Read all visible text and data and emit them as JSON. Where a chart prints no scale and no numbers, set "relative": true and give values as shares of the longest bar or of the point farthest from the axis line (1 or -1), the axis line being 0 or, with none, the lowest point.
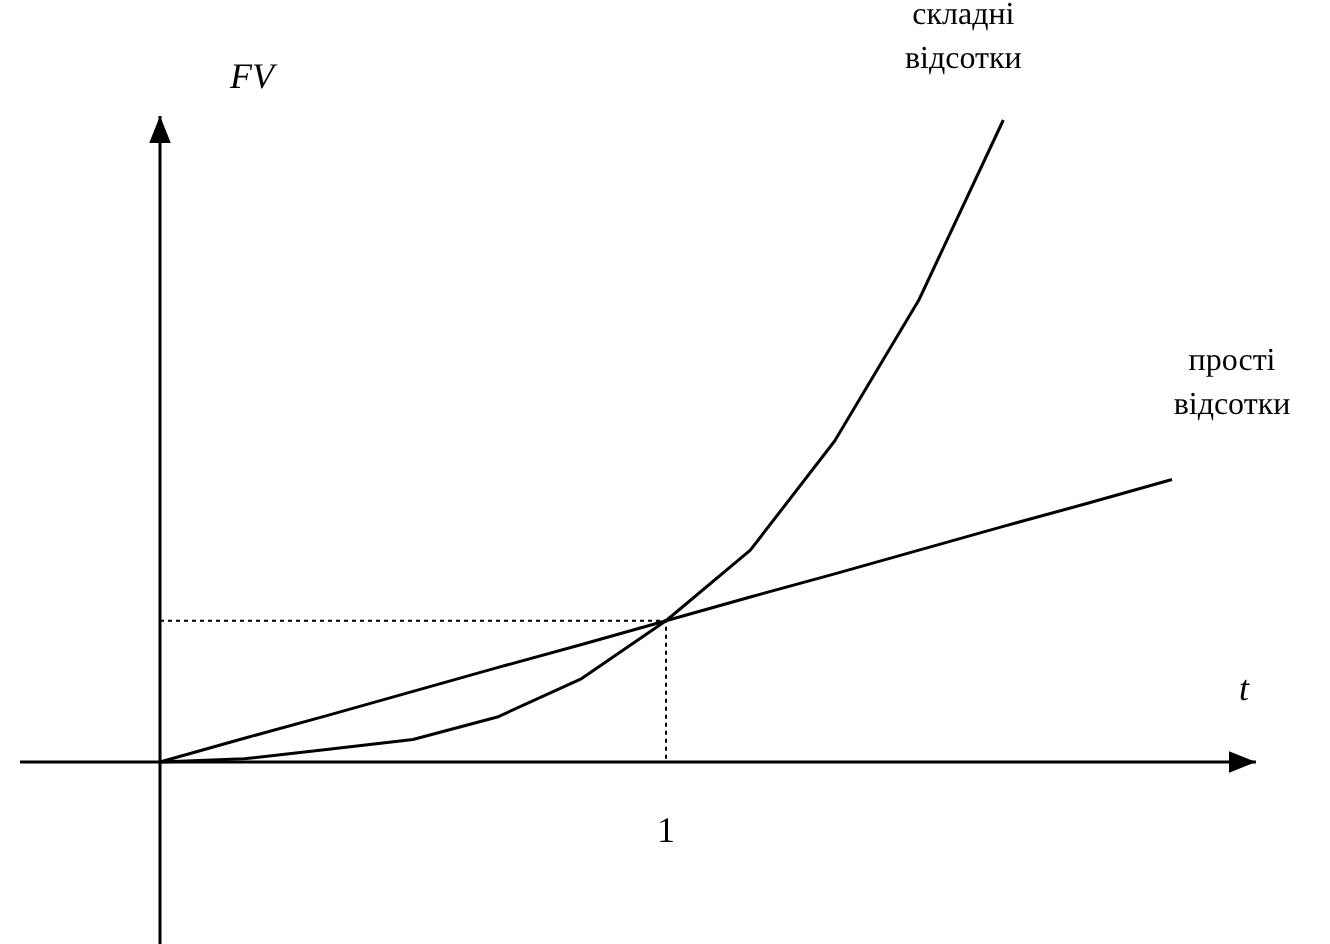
{
  "chart_data": {
    "type": "line",
    "relative": true,
    "xlabel": "t",
    "ylabel": "FV",
    "categories": [
      null,
      null,
      null,
      null,
      null,
      null,
      null,
      null,
      null,
      null,
      null,
      null,
      null
    ],
    "series": [
      {
        "name": "складні відсотки",
        "color": "#000000",
        "values": [
          0,
          0.005,
          0.02,
          0.035,
          0.07,
          0.13,
          0.22,
          0.33,
          0.5,
          0.72,
          1,
          null,
          null
        ]
      },
      {
        "name": "прості відсотки",
        "color": "#000000",
        "values": [
          0,
          0.037,
          0.073,
          0.11,
          0.147,
          0.183,
          0.22,
          0.257,
          0.293,
          0.33,
          0.367,
          0.403,
          0.44
        ]
      }
    ],
    "annotations": [
      "1"
    ],
    "ref_lines": [
      {
        "axis": "y",
        "value": 0.22,
        "line_style": "dotted"
      }
    ]
  }
}
